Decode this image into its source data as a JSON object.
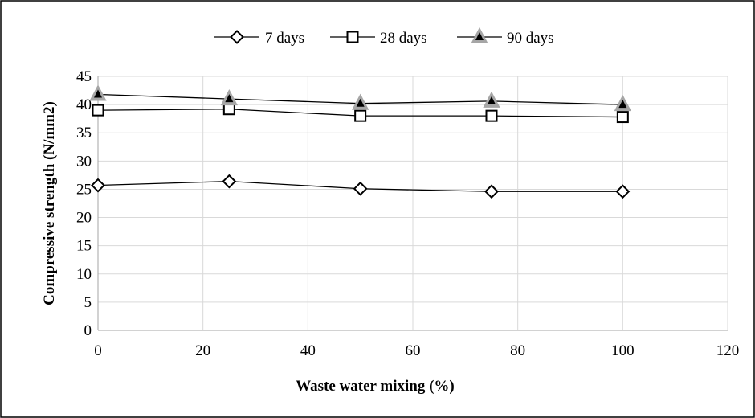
{
  "chart_data": {
    "type": "line",
    "title": "",
    "xlabel": "Waste water mixing (%)",
    "ylabel": "Compressive strength (N/mm2)",
    "xlim": [
      0,
      120
    ],
    "ylim": [
      0,
      45
    ],
    "xticks": [
      0,
      20,
      40,
      60,
      80,
      100,
      120
    ],
    "yticks": [
      0,
      5,
      10,
      15,
      20,
      25,
      30,
      35,
      40,
      45
    ],
    "grid": true,
    "legend_position": "top",
    "x": [
      0,
      25,
      50,
      75,
      100
    ],
    "series": [
      {
        "name": "7 days",
        "marker": "diamond",
        "values": [
          25.7,
          26.4,
          25.1,
          24.6,
          24.6
        ]
      },
      {
        "name": "28 days",
        "marker": "square",
        "values": [
          39.0,
          39.2,
          38.0,
          38.0,
          37.8
        ]
      },
      {
        "name": "90 days",
        "marker": "triangle",
        "values": [
          41.8,
          41.0,
          40.2,
          40.6,
          40.0
        ]
      }
    ],
    "colors": {
      "line": "#000000",
      "grid": "#d9d9d9",
      "triangle_fill": "#000000",
      "triangle_halo": "#a6a6a6"
    }
  }
}
